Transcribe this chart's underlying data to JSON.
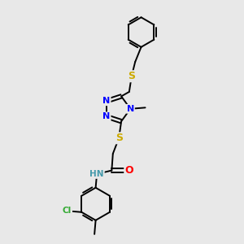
{
  "background_color": "#e8e8e8",
  "bond_color": "#000000",
  "atom_colors": {
    "N": "#0000ff",
    "S_top": "#ccaa00",
    "S_bottom": "#ccaa00",
    "O": "#ff0000",
    "Cl": "#33aa33",
    "C": "#000000",
    "H": "#4499aa"
  },
  "figsize": [
    3.0,
    3.0
  ],
  "dpi": 100,
  "xlim": [
    0,
    10
  ],
  "ylim": [
    0,
    10
  ]
}
